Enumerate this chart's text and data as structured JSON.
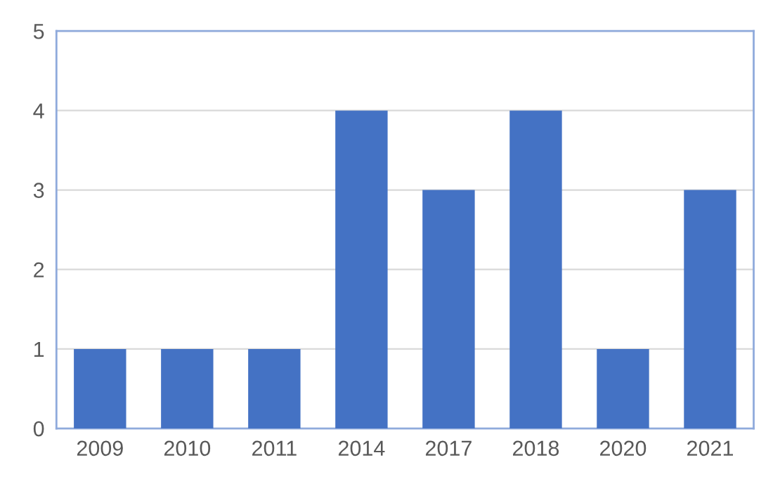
{
  "chart_data": {
    "type": "bar",
    "categories": [
      "2009",
      "2010",
      "2011",
      "2014",
      "2017",
      "2018",
      "2020",
      "2021"
    ],
    "values": [
      1,
      1,
      1,
      4,
      3,
      4,
      1,
      3
    ],
    "color": "#4472c4",
    "ylim": [
      0,
      5
    ],
    "yticks": [
      0,
      1,
      2,
      3,
      4,
      5
    ],
    "grid": "y",
    "legend": false
  }
}
